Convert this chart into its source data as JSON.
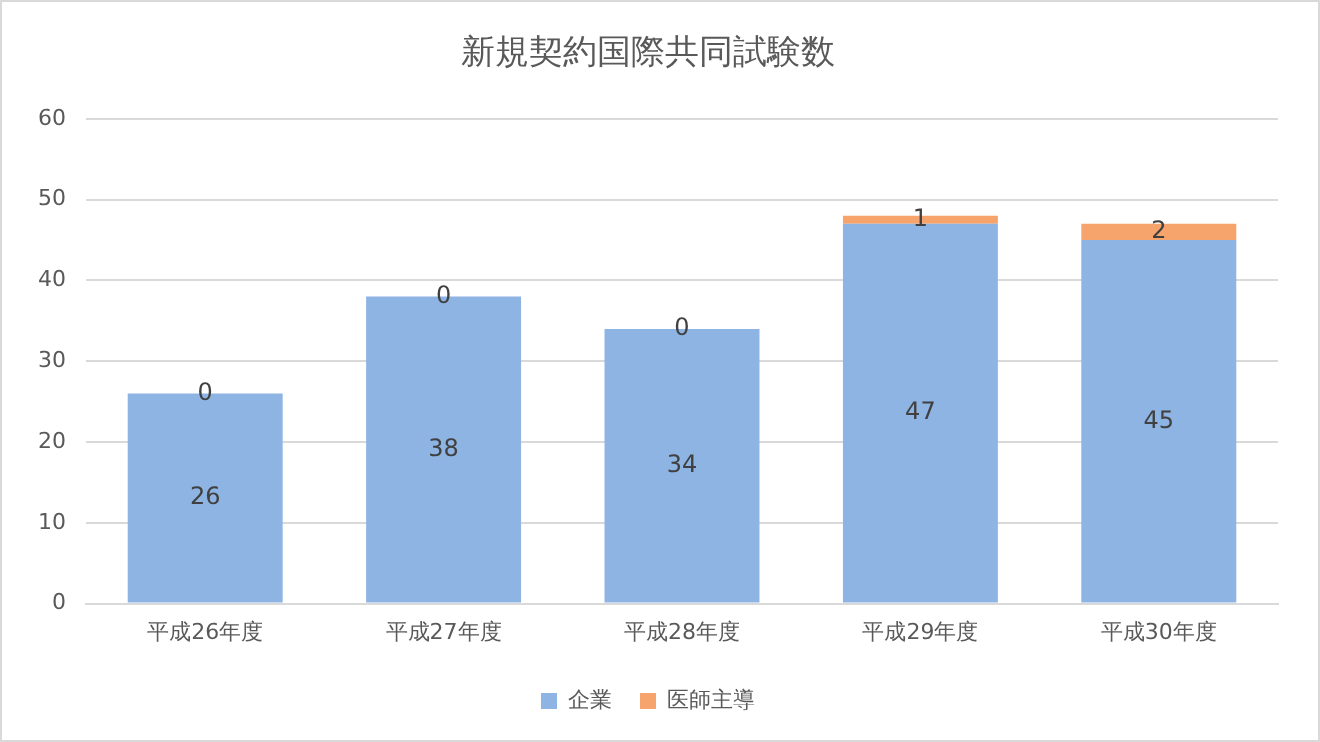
{
  "chart_data": {
    "type": "bar",
    "title": "新規契約国際共同試験数",
    "categories": [
      "平成26年度",
      "平成27年度",
      "平成28年度",
      "平成29年度",
      "平成30年度"
    ],
    "series": [
      {
        "name": "企業",
        "color": "#8db4e2",
        "values": [
          26,
          38,
          34,
          47,
          45
        ]
      },
      {
        "name": "医師主導",
        "color": "#f6a46c",
        "values": [
          0,
          0,
          0,
          1,
          2
        ]
      }
    ],
    "stacked": true,
    "ylim": [
      0,
      60
    ],
    "yticks": [
      0,
      10,
      20,
      30,
      40,
      50,
      60
    ],
    "grid": "y",
    "legend": "bottom",
    "data_labels": true
  }
}
